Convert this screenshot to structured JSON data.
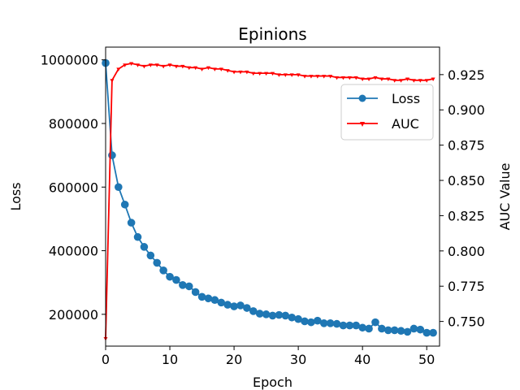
{
  "chart_data": {
    "type": "line",
    "title": "Epinions",
    "xlabel": "Epoch",
    "ylabel_left": "Loss",
    "ylabel_right": "AUC Value",
    "xlim": [
      0,
      52
    ],
    "ylim_left": [
      100000,
      1040000
    ],
    "ylim_right": [
      0.7325,
      0.9445
    ],
    "x_ticks": [
      0,
      10,
      20,
      30,
      40,
      50
    ],
    "x_tick_labels": [
      "0",
      "10",
      "20",
      "30",
      "40",
      "50"
    ],
    "y_ticks_left": [
      200000,
      400000,
      600000,
      800000,
      1000000
    ],
    "y_tick_labels_left": [
      "200000",
      "400000",
      "600000",
      "800000",
      "1000000"
    ],
    "y_ticks_right": [
      0.75,
      0.775,
      0.8,
      0.825,
      0.85,
      0.875,
      0.9,
      0.925
    ],
    "y_tick_labels_right": [
      "0.750",
      "0.775",
      "0.800",
      "0.825",
      "0.850",
      "0.875",
      "0.900",
      "0.925"
    ],
    "legend": {
      "position": "upper-right",
      "entries": [
        "Loss",
        "AUC"
      ]
    },
    "series": [
      {
        "name": "Loss",
        "axis": "left",
        "color": "#1f77b4",
        "marker": "circle",
        "x": [
          0,
          1,
          2,
          3,
          4,
          5,
          6,
          7,
          8,
          9,
          10,
          11,
          12,
          13,
          14,
          15,
          16,
          17,
          18,
          19,
          20,
          21,
          22,
          23,
          24,
          25,
          26,
          27,
          28,
          29,
          30,
          31,
          32,
          33,
          34,
          35,
          36,
          37,
          38,
          39,
          40,
          41,
          42,
          43,
          44,
          45,
          46,
          47,
          48,
          49,
          50,
          51
        ],
        "values": [
          990000,
          700000,
          600000,
          545000,
          488000,
          443000,
          412000,
          385000,
          362000,
          338000,
          318000,
          308000,
          292000,
          288000,
          270000,
          255000,
          250000,
          245000,
          237000,
          230000,
          225000,
          228000,
          220000,
          210000,
          202000,
          200000,
          196000,
          198000,
          196000,
          190000,
          185000,
          178000,
          175000,
          180000,
          172000,
          172000,
          170000,
          165000,
          165000,
          165000,
          158000,
          155000,
          175000,
          155000,
          150000,
          150000,
          148000,
          145000,
          155000,
          152000,
          142000,
          142000
        ]
      },
      {
        "name": "AUC",
        "axis": "right",
        "color": "#ff0000",
        "marker": "tri_down",
        "x": [
          0,
          1,
          2,
          3,
          4,
          5,
          6,
          7,
          8,
          9,
          10,
          11,
          12,
          13,
          14,
          15,
          16,
          17,
          18,
          19,
          20,
          21,
          22,
          23,
          24,
          25,
          26,
          27,
          28,
          29,
          30,
          31,
          32,
          33,
          34,
          35,
          36,
          37,
          38,
          39,
          40,
          41,
          42,
          43,
          44,
          45,
          46,
          47,
          48,
          49,
          50,
          51
        ],
        "values": [
          0.738,
          0.921,
          0.929,
          0.932,
          0.933,
          0.932,
          0.931,
          0.932,
          0.932,
          0.931,
          0.932,
          0.931,
          0.931,
          0.93,
          0.93,
          0.929,
          0.93,
          0.929,
          0.929,
          0.928,
          0.927,
          0.927,
          0.927,
          0.926,
          0.926,
          0.926,
          0.926,
          0.925,
          0.925,
          0.925,
          0.925,
          0.924,
          0.924,
          0.924,
          0.924,
          0.924,
          0.923,
          0.923,
          0.923,
          0.923,
          0.922,
          0.922,
          0.923,
          0.922,
          0.922,
          0.921,
          0.921,
          0.922,
          0.921,
          0.921,
          0.921,
          0.922
        ]
      }
    ]
  }
}
